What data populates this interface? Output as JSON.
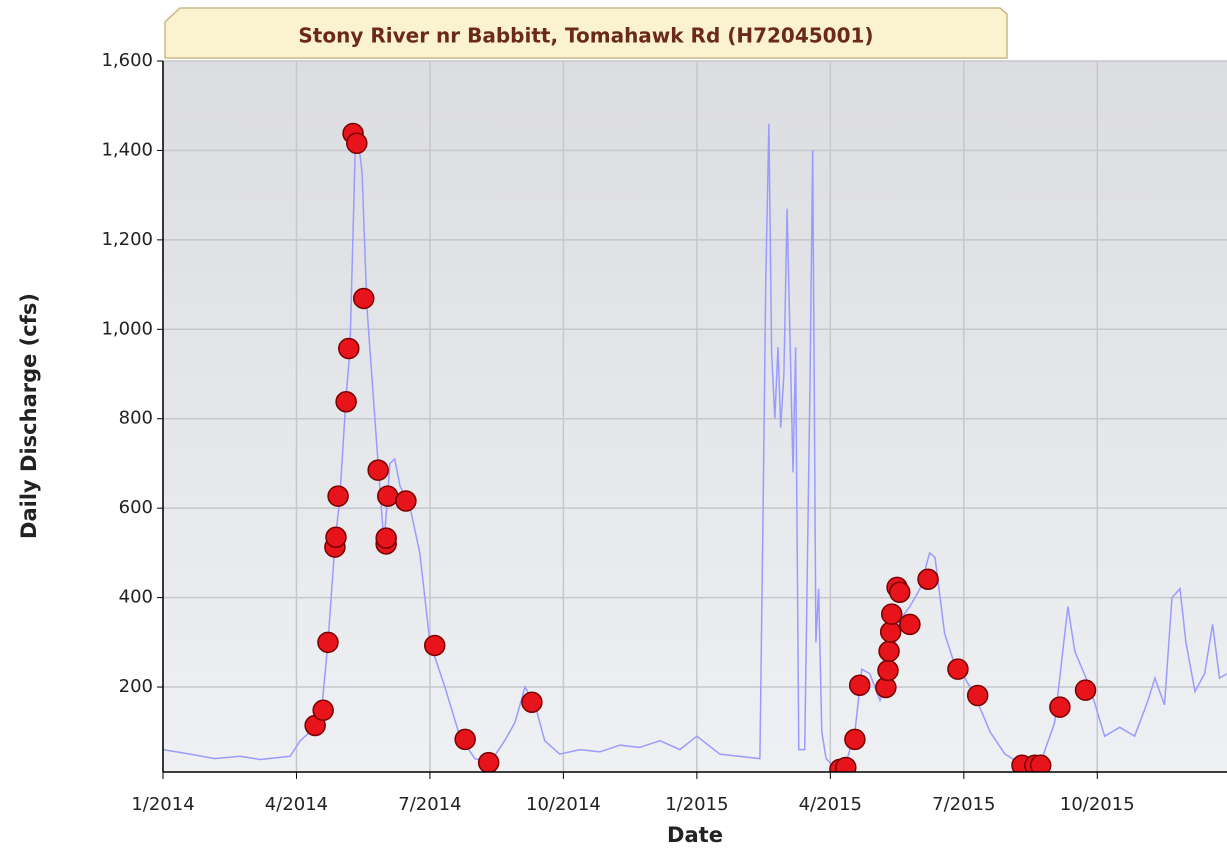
{
  "chart_data": {
    "type": "line",
    "title": "Stony River nr Babbitt, Tomahawk Rd (H72045001)",
    "x_label": "Date",
    "y_label": "Daily Discharge (cfs)",
    "xlim": [
      2014,
      2015.993
    ],
    "ylim": [
      10,
      1600
    ],
    "xticks": [
      {
        "value": 2014,
        "label": "1/2014"
      },
      {
        "value": 2014.25,
        "label": "4/2014"
      },
      {
        "value": 2014.5,
        "label": "7/2014"
      },
      {
        "value": 2014.75,
        "label": "10/2014"
      },
      {
        "value": 2015,
        "label": "1/2015"
      },
      {
        "value": 2015.25,
        "label": "4/2015"
      },
      {
        "value": 2015.5,
        "label": "7/2015"
      },
      {
        "value": 2015.75,
        "label": "10/2015"
      }
    ],
    "yticks": [
      200,
      400,
      600,
      800,
      {
        "value": 1000,
        "label": "1,000"
      },
      {
        "value": 1200,
        "label": "1,200"
      },
      {
        "value": 1400,
        "label": "1,400"
      },
      {
        "value": 1600,
        "label": "1,600"
      }
    ],
    "grid": true,
    "series": [
      {
        "type": "line",
        "color": "#9b9bff",
        "x": [
          2014.0,
          2014.051,
          2014.097,
          2014.144,
          2014.182,
          2014.238,
          2014.257,
          2014.285,
          2014.298,
          2014.309,
          2014.322,
          2014.331,
          2014.343,
          2014.35,
          2014.36,
          2014.365,
          2014.373,
          2014.382,
          2014.391,
          2014.403,
          2014.414,
          2014.425,
          2014.434,
          2014.444,
          2014.463,
          2014.481,
          2014.5,
          2014.528,
          2014.556,
          2014.584,
          2014.612,
          2014.64,
          2014.659,
          2014.678,
          2014.697,
          2014.715,
          2014.743,
          2014.781,
          2014.818,
          2014.856,
          2014.893,
          2014.931,
          2014.968,
          2015.0,
          2015.043,
          2015.118,
          2015.124,
          2015.129,
          2015.135,
          2015.14,
          2015.146,
          2015.152,
          2015.157,
          2015.163,
          2015.169,
          2015.174,
          2015.18,
          2015.185,
          2015.191,
          2015.202,
          2015.212,
          2015.217,
          2015.223,
          2015.228,
          2015.234,
          2015.242,
          2015.258,
          2015.277,
          2015.296,
          2015.309,
          2015.324,
          2015.343,
          2015.361,
          2015.38,
          2015.399,
          2015.418,
          2015.436,
          2015.446,
          2015.464,
          2015.483,
          2015.502,
          2015.521,
          2015.549,
          2015.577,
          2015.605,
          2015.642,
          2015.67,
          2015.695,
          2015.708,
          2015.736,
          2015.764,
          2015.792,
          2015.82,
          2015.845,
          2015.858,
          2015.876,
          2015.89,
          2015.905,
          2015.916,
          2015.933,
          2015.951,
          2015.966,
          2015.979,
          2015.993
        ],
        "values": [
          60,
          50,
          40,
          45,
          38,
          45,
          80,
          110,
          160,
          300,
          520,
          620,
          850,
          950,
          1400,
          1430,
          1350,
          1050,
          900,
          700,
          520,
          700,
          710,
          650,
          600,
          500,
          300,
          200,
          90,
          40,
          30,
          80,
          120,
          200,
          160,
          80,
          50,
          60,
          55,
          70,
          65,
          80,
          60,
          90,
          50,
          40,
          600,
          1100,
          1460,
          950,
          800,
          960,
          780,
          900,
          1270,
          1000,
          680,
          960,
          60,
          60,
          880,
          1400,
          300,
          420,
          100,
          40,
          20,
          20,
          100,
          240,
          230,
          170,
          230,
          350,
          380,
          420,
          500,
          490,
          320,
          250,
          220,
          180,
          100,
          50,
          30,
          25,
          120,
          380,
          280,
          200,
          90,
          110,
          90,
          170,
          220,
          160,
          400,
          420,
          300,
          190,
          230,
          340,
          220,
          230
        ]
      },
      {
        "type": "scatter",
        "color": "#e8141c",
        "x": [
          2014.285,
          2014.3,
          2014.309,
          2014.322,
          2014.324,
          2014.328,
          2014.343,
          2014.348,
          2014.356,
          2014.363,
          2014.376,
          2014.403,
          2014.418,
          2014.418,
          2014.421,
          2014.455,
          2014.509,
          2014.566,
          2014.61,
          2014.691,
          2015.268,
          2015.279,
          2015.296,
          2015.305,
          2015.354,
          2015.358,
          2015.36,
          2015.363,
          2015.365,
          2015.375,
          2015.38,
          2015.399,
          2015.433,
          2015.489,
          2015.526,
          2015.609,
          2015.633,
          2015.644,
          2015.68,
          2015.728
        ],
        "values": [
          114,
          148,
          300,
          513,
          535,
          627,
          838,
          957,
          1438,
          1416,
          1069,
          685,
          520,
          533,
          627,
          616,
          293,
          83,
          31,
          166,
          16,
          20,
          83,
          204,
          199,
          237,
          280,
          323,
          363,
          423,
          412,
          340,
          441,
          240,
          181,
          25,
          25,
          25,
          155,
          193
        ]
      }
    ]
  }
}
